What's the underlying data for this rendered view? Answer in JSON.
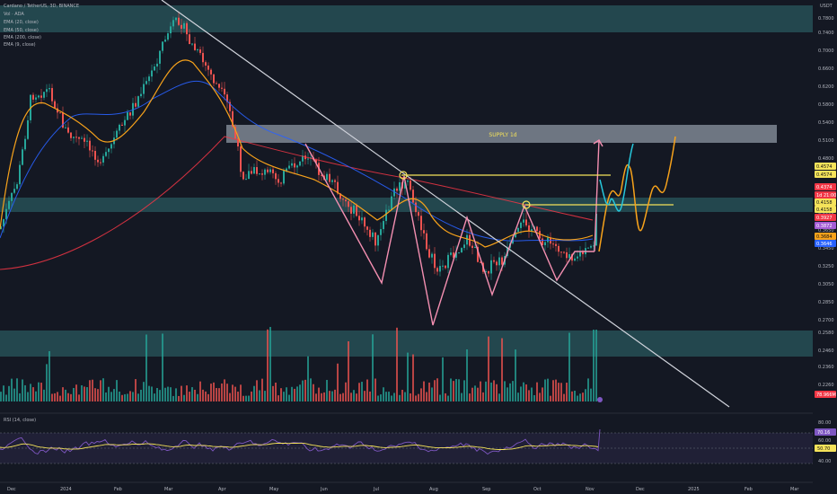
{
  "legend": {
    "symbol": "Cardano / TetherUS, 3D, BINANCE",
    "volume": "Vol · ADA",
    "ema1": "EMA (20, close)",
    "ema2": "EMA (50, close)",
    "ema3": "EMA (200, close)",
    "ema4": "EMA (9, close)"
  },
  "supply_label": "SUPPLY 1d",
  "price_axis": {
    "currency": "USDT",
    "ticks": [
      "0.7800",
      "0.7400",
      "0.7000",
      "0.6600",
      "0.6200",
      "0.5800",
      "0.5400",
      "0.5100",
      "0.4800",
      "0.4500",
      "0.4200",
      "0.3900",
      "0.3650",
      "0.3450",
      "0.3250",
      "0.3050",
      "0.2850",
      "0.2700",
      "0.2580",
      "0.2460",
      "0.2360",
      "0.2260"
    ],
    "tags": [
      {
        "value": "0.4574",
        "bg": "#f5e35a",
        "fg": "#111111"
      },
      {
        "value": "0.4574",
        "bg": "#f5e35a",
        "fg": "#111111"
      },
      {
        "value": "0.4374",
        "bg": "#f23645",
        "fg": "#ffffff"
      },
      {
        "value": "1d 21:00",
        "bg": "#f23645",
        "fg": "#ffffff"
      },
      {
        "value": "0.4158",
        "bg": "#f5e35a",
        "fg": "#111111"
      },
      {
        "value": "0.4158",
        "bg": "#f5e35a",
        "fg": "#111111"
      },
      {
        "value": "0.3927",
        "bg": "#f23645",
        "fg": "#ffffff"
      },
      {
        "value": "0.3872",
        "bg": "#a45cd6",
        "fg": "#ffffff"
      },
      {
        "value": "0.3684",
        "bg": "#f7a21b",
        "fg": "#111111"
      },
      {
        "value": "0.3646",
        "bg": "#2962ff",
        "fg": "#ffffff"
      },
      {
        "value": "78.966M",
        "bg": "#f23645",
        "fg": "#ffffff"
      }
    ]
  },
  "rsi": {
    "label": "RSI (14, close)",
    "ticks": [
      "80.00",
      "60.00",
      "40.00"
    ],
    "tags": [
      {
        "value": "70.16",
        "bg": "#7e57c2",
        "fg": "#ffffff"
      },
      {
        "value": "50.70",
        "bg": "#f5e35a",
        "fg": "#111111"
      }
    ]
  },
  "time_axis": [
    "Dec",
    "2024",
    "Feb",
    "Mar",
    "Apr",
    "May",
    "Jun",
    "Jul",
    "Aug",
    "Sep",
    "Oct",
    "Nov",
    "Dec",
    "2025",
    "Feb",
    "Mar"
  ],
  "colors": {
    "background": "#141823",
    "zone": "#2f6f73",
    "supply_zone": "#b8c4d2",
    "candle_up": "#26a69a",
    "candle_down": "#ef5350",
    "ema_fast": "#f7a21b",
    "ema_mid": "#2962ff",
    "ema_slow": "#f23645",
    "pattern": "#f48fb1",
    "level": "#f5e35a",
    "projection_orange": "#f7a21b",
    "projection_cyan": "#26c6da",
    "trendline": "#d1d4dc",
    "rsi_line": "#7e57c2"
  }
}
